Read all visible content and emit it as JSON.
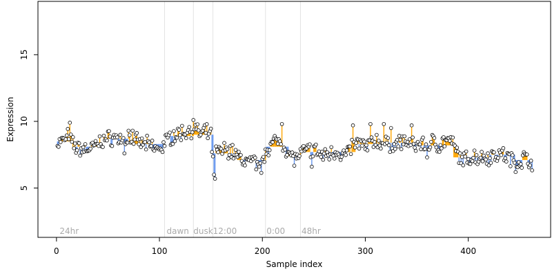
{
  "chart_data": {
    "type": "scatter",
    "xlabel": "Sample index",
    "ylabel": "Expression",
    "xlim": [
      -18,
      480
    ],
    "ylim": [
      1.3,
      19.0
    ],
    "x_ticks": [
      0,
      100,
      200,
      300,
      400
    ],
    "y_ticks": [
      5,
      10,
      15
    ],
    "grid": false,
    "colors": {
      "above_mean": "#FFA500",
      "below_mean": "#6495ED",
      "guide_lines": "#e3e3e3",
      "annotation_text": "#aaaaaa",
      "point_edge": "#000000"
    },
    "annotations": [
      {
        "label": "24hr",
        "x": 3
      },
      {
        "label": "dawn",
        "x": 107
      },
      {
        "label": "dusk",
        "x": 133
      },
      {
        "label": "12:00",
        "x": 152
      },
      {
        "label": "0:00",
        "x": 204
      },
      {
        "label": "48hr",
        "x": 238
      }
    ],
    "vertical_lines": [
      105,
      133,
      152,
      203,
      237
    ],
    "mean_segments": [
      {
        "x0": 0,
        "x1": 15,
        "y": 8.5
      },
      {
        "x0": 15,
        "x1": 45,
        "y": 8.1
      },
      {
        "x0": 45,
        "x1": 70,
        "y": 8.7
      },
      {
        "x0": 70,
        "x1": 105,
        "y": 8.3
      },
      {
        "x0": 105,
        "x1": 133,
        "y": 8.9
      },
      {
        "x0": 133,
        "x1": 152,
        "y": 9.0
      },
      {
        "x0": 152,
        "x1": 175,
        "y": 7.6
      },
      {
        "x0": 175,
        "x1": 203,
        "y": 7.1
      },
      {
        "x0": 203,
        "x1": 225,
        "y": 8.1
      },
      {
        "x0": 225,
        "x1": 237,
        "y": 7.4
      },
      {
        "x0": 237,
        "x1": 260,
        "y": 7.7
      },
      {
        "x0": 260,
        "x1": 290,
        "y": 7.7
      },
      {
        "x0": 290,
        "x1": 320,
        "y": 8.3
      },
      {
        "x0": 320,
        "x1": 350,
        "y": 8.4
      },
      {
        "x0": 350,
        "x1": 385,
        "y": 8.2
      },
      {
        "x0": 385,
        "x1": 420,
        "y": 7.3
      },
      {
        "x0": 420,
        "x1": 445,
        "y": 7.5
      },
      {
        "x0": 445,
        "x1": 462,
        "y": 7.1
      }
    ],
    "anchors": [
      [
        1,
        8.4
      ],
      [
        5,
        8.5
      ],
      [
        8,
        8.6
      ],
      [
        12,
        9.0
      ],
      [
        15,
        8.3
      ],
      [
        20,
        8.0
      ],
      [
        25,
        7.9
      ],
      [
        35,
        8.0
      ],
      [
        45,
        8.6
      ],
      [
        55,
        8.8
      ],
      [
        65,
        8.6
      ],
      [
        70,
        8.7
      ],
      [
        80,
        8.4
      ],
      [
        90,
        8.2
      ],
      [
        98,
        7.9
      ],
      [
        105,
        8.4
      ],
      [
        112,
        8.9
      ],
      [
        120,
        9.1
      ],
      [
        128,
        9.3
      ],
      [
        133,
        9.5
      ],
      [
        140,
        9.0
      ],
      [
        145,
        9.2
      ],
      [
        150,
        8.9
      ],
      [
        152,
        7.3
      ],
      [
        155,
        7.6
      ],
      [
        160,
        7.8
      ],
      [
        165,
        7.9
      ],
      [
        172,
        7.7
      ],
      [
        178,
        7.2
      ],
      [
        185,
        7.0
      ],
      [
        192,
        6.9
      ],
      [
        200,
        6.6
      ],
      [
        203,
        7.9
      ],
      [
        208,
        8.2
      ],
      [
        215,
        8.6
      ],
      [
        220,
        8.4
      ],
      [
        225,
        7.6
      ],
      [
        232,
        7.2
      ],
      [
        237,
        7.5
      ],
      [
        242,
        7.8
      ],
      [
        250,
        7.9
      ],
      [
        258,
        7.4
      ],
      [
        265,
        7.6
      ],
      [
        272,
        7.8
      ],
      [
        280,
        7.4
      ],
      [
        288,
        8.2
      ],
      [
        295,
        8.4
      ],
      [
        300,
        8.0
      ],
      [
        310,
        8.6
      ],
      [
        318,
        8.3
      ],
      [
        325,
        8.2
      ],
      [
        332,
        8.4
      ],
      [
        340,
        8.5
      ],
      [
        347,
        8.1
      ],
      [
        355,
        8.4
      ],
      [
        360,
        8.0
      ],
      [
        365,
        8.5
      ],
      [
        372,
        8.2
      ],
      [
        378,
        8.6
      ],
      [
        385,
        8.3
      ],
      [
        390,
        7.5
      ],
      [
        395,
        7.1
      ],
      [
        400,
        7.2
      ],
      [
        405,
        7.4
      ],
      [
        410,
        7.3
      ],
      [
        418,
        7.4
      ],
      [
        425,
        7.5
      ],
      [
        432,
        7.6
      ],
      [
        440,
        7.2
      ],
      [
        445,
        7.0
      ],
      [
        450,
        7.0
      ],
      [
        455,
        7.3
      ],
      [
        462,
        7.0
      ]
    ],
    "spikes": [
      [
        13,
        9.9
      ],
      [
        66,
        7.6
      ],
      [
        70,
        9.3
      ],
      [
        74,
        9.3
      ],
      [
        103,
        7.7
      ],
      [
        133,
        10.1
      ],
      [
        153,
        6.0
      ],
      [
        154,
        5.7
      ],
      [
        194,
        6.4
      ],
      [
        219,
        9.8
      ],
      [
        248,
        6.6
      ],
      [
        288,
        9.7
      ],
      [
        305,
        9.8
      ],
      [
        318,
        9.8
      ],
      [
        325,
        9.5
      ],
      [
        345,
        9.7
      ],
      [
        360,
        7.3
      ],
      [
        395,
        6.7
      ],
      [
        446,
        6.2
      ],
      [
        420,
        6.7
      ]
    ]
  }
}
